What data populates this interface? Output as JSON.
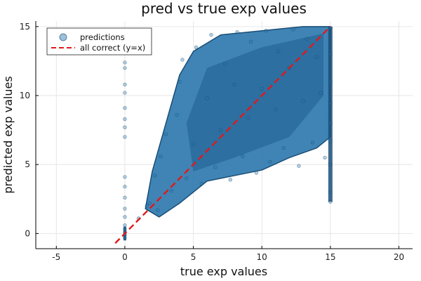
{
  "chart_data": {
    "type": "scatter",
    "title": "pred vs true exp values",
    "xlabel": "true exp values",
    "ylabel": "predicted exp values",
    "xlim": [
      -6.5,
      21
    ],
    "ylim": [
      -1.1,
      15.4
    ],
    "xticks": [
      -5,
      0,
      5,
      10,
      15,
      20
    ],
    "yticks": [
      0,
      5,
      10,
      15
    ],
    "grid": true,
    "legend_position": "top-left",
    "series": [
      {
        "name": "predictions",
        "kind": "scatter",
        "color": "#1f77b4",
        "edge_color": "#1a3d5c",
        "opacity": 0.35,
        "points": [
          [
            0,
            -0.1
          ],
          [
            0,
            0.1
          ],
          [
            0,
            0.3
          ],
          [
            0,
            -0.3
          ],
          [
            0,
            0.6
          ],
          [
            0,
            1.2
          ],
          [
            0,
            1.8
          ],
          [
            0,
            2.6
          ],
          [
            0,
            3.4
          ],
          [
            0,
            4.1
          ],
          [
            0,
            7.0
          ],
          [
            0,
            7.7
          ],
          [
            0,
            8.3
          ],
          [
            0,
            9.1
          ],
          [
            0,
            10.2
          ],
          [
            0,
            10.8
          ],
          [
            0,
            12.0
          ],
          [
            0,
            12.4
          ],
          [
            1.0,
            1.1
          ],
          [
            1.6,
            2.0
          ],
          [
            1.8,
            2.2
          ],
          [
            2.4,
            1.7
          ],
          [
            2.2,
            4.2
          ],
          [
            2.6,
            5.6
          ],
          [
            3.0,
            7.2
          ],
          [
            3.4,
            3.1
          ],
          [
            3.8,
            8.6
          ],
          [
            4.0,
            11.0
          ],
          [
            4.2,
            12.6
          ],
          [
            4.5,
            4.0
          ],
          [
            5.0,
            6.5
          ],
          [
            5.2,
            13.5
          ],
          [
            5.6,
            3.6
          ],
          [
            6.0,
            9.8
          ],
          [
            6.3,
            14.4
          ],
          [
            6.6,
            4.8
          ],
          [
            7.0,
            7.5
          ],
          [
            7.3,
            12.3
          ],
          [
            7.7,
            3.9
          ],
          [
            8.0,
            10.8
          ],
          [
            8.2,
            14.6
          ],
          [
            8.6,
            5.6
          ],
          [
            9.0,
            8.4
          ],
          [
            9.2,
            13.9
          ],
          [
            9.6,
            4.4
          ],
          [
            10.0,
            10.5
          ],
          [
            10.3,
            14.7
          ],
          [
            10.6,
            5.2
          ],
          [
            11.0,
            9.0
          ],
          [
            11.2,
            13.2
          ],
          [
            11.6,
            6.2
          ],
          [
            12.0,
            12.0
          ],
          [
            12.3,
            14.8
          ],
          [
            12.7,
            4.9
          ],
          [
            13.0,
            9.6
          ],
          [
            13.3,
            14.1
          ],
          [
            13.7,
            6.6
          ],
          [
            14.0,
            12.8
          ],
          [
            14.3,
            10.2
          ],
          [
            14.6,
            5.5
          ],
          [
            15.0,
            14.9
          ],
          [
            15.0,
            13.0
          ],
          [
            15.0,
            11.0
          ],
          [
            15.0,
            9.4
          ],
          [
            15.0,
            8.0
          ],
          [
            15.0,
            6.7
          ],
          [
            15.0,
            5.0
          ],
          [
            15.0,
            3.0
          ],
          [
            15.0,
            2.3
          ]
        ]
      },
      {
        "name": "all correct (y=x)",
        "kind": "line",
        "style": "dashed",
        "color": "#e0191c",
        "points": [
          [
            -0.7,
            -0.7
          ],
          [
            15,
            15
          ]
        ]
      }
    ]
  }
}
